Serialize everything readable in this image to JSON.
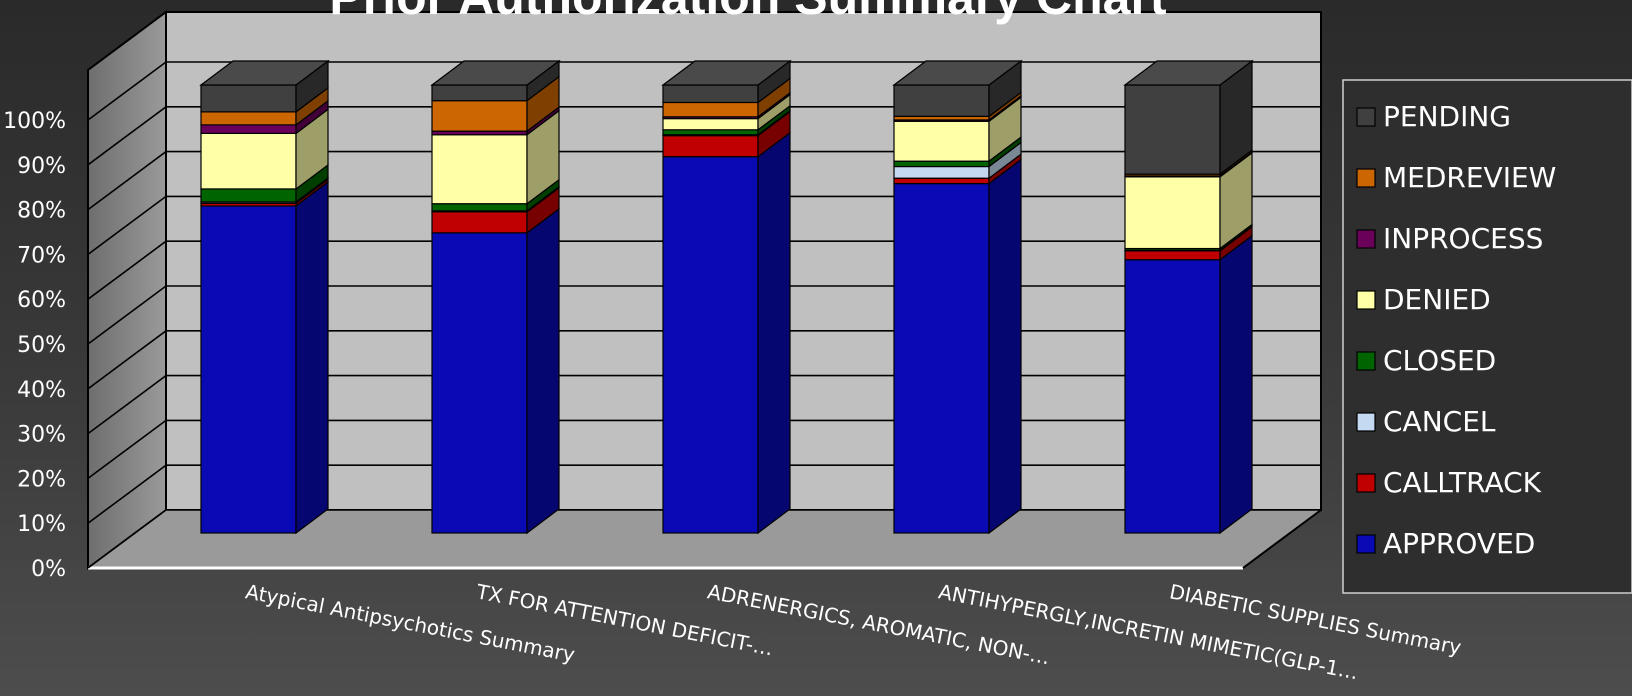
{
  "chart_data": {
    "type": "bar",
    "stacked": true,
    "three_d": true,
    "title": "Prior Authorization Summary Chart",
    "xlabel": "",
    "ylabel": "",
    "ylim": [
      0,
      100
    ],
    "y_ticks": [
      "0%",
      "10%",
      "20%",
      "30%",
      "40%",
      "50%",
      "60%",
      "70%",
      "80%",
      "90%",
      "100%"
    ],
    "grid": true,
    "legend_position": "right",
    "categories": [
      "Atypical Antipsychotics Summary",
      "TX FOR ATTENTION DEFICIT-…",
      "ADRENERGICS, AROMATIC, NON-…",
      "ANTIHYPERGLY,INCRETIN MIMETIC(GLP-1…",
      "DIABETIC SUPPLIES Summary"
    ],
    "series": [
      {
        "name": "APPROVED",
        "color": "#0a0ab4",
        "values": [
          73,
          67,
          84,
          78,
          61
        ]
      },
      {
        "name": "CALLTRACK",
        "color": "#c00000",
        "values": [
          0.6,
          4.7,
          4.7,
          1.2,
          2.0
        ]
      },
      {
        "name": "CANCEL",
        "color": "#c5d9f0",
        "values": [
          0.3,
          0.2,
          0.2,
          2.6,
          0.1
        ]
      },
      {
        "name": "CLOSED",
        "color": "#006400",
        "values": [
          2.9,
          1.6,
          1.1,
          1.2,
          0.4
        ]
      },
      {
        "name": "DENIED",
        "color": "#ffffa8",
        "values": [
          12.4,
          15.4,
          2.5,
          8.9,
          16.0
        ]
      },
      {
        "name": "INPROCESS",
        "color": "#6b005b",
        "values": [
          1.9,
          0.8,
          0.4,
          0.3,
          0.2
        ]
      },
      {
        "name": "MEDREVIEW",
        "color": "#cc6600",
        "values": [
          2.9,
          6.8,
          3.2,
          0.8,
          0.4
        ]
      },
      {
        "name": "PENDING",
        "color": "#404040",
        "values": [
          6.0,
          3.5,
          3.9,
          7.0,
          19.9
        ]
      }
    ]
  }
}
